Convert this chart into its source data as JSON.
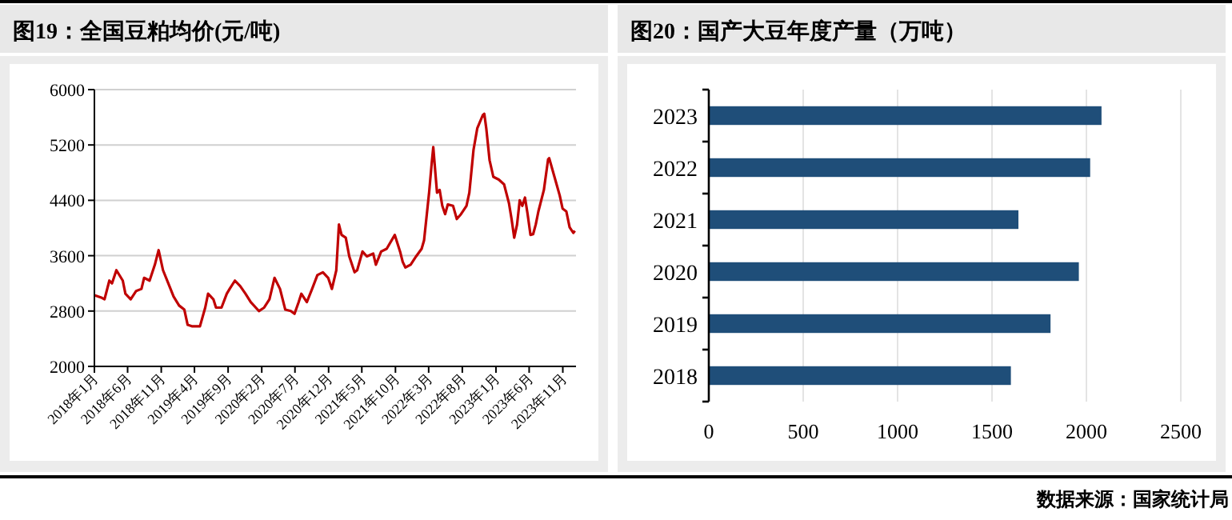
{
  "chart_data": [
    {
      "type": "line",
      "title": "图19：全国豆粕均价(元/吨)",
      "x": [
        "2018-01-01",
        "2018-02-04",
        "2018-02-16",
        "2018-03-10",
        "2018-03-22",
        "2018-04-11",
        "2018-05-10",
        "2018-05-22",
        "2018-06-15",
        "2018-07-10",
        "2018-08-03",
        "2018-08-15",
        "2018-09-09",
        "2018-10-03",
        "2018-10-20",
        "2018-11-09",
        "2018-12-03",
        "2018-12-27",
        "2019-01-21",
        "2019-02-14",
        "2019-03-01",
        "2019-03-20",
        "2019-04-26",
        "2019-05-20",
        "2019-06-02",
        "2019-06-26",
        "2019-07-08",
        "2019-08-02",
        "2019-08-26",
        "2019-09-08",
        "2019-10-02",
        "2019-10-26",
        "2019-11-19",
        "2019-12-13",
        "2020-01-19",
        "2020-02-12",
        "2020-03-07",
        "2020-03-30",
        "2020-04-24",
        "2020-05-18",
        "2020-06-12",
        "2020-06-29",
        "2020-07-18",
        "2020-07-30",
        "2020-08-24",
        "2020-09-17",
        "2020-10-11",
        "2020-11-05",
        "2020-11-29",
        "2020-12-16",
        "2021-01-05",
        "2021-01-17",
        "2021-01-29",
        "2021-02-17",
        "2021-03-05",
        "2021-03-29",
        "2021-04-10",
        "2021-05-04",
        "2021-05-24",
        "2021-06-22",
        "2021-07-04",
        "2021-07-28",
        "2021-08-22",
        "2021-09-28",
        "2021-10-22",
        "2021-11-03",
        "2021-11-15",
        "2021-12-09",
        "2022-01-03",
        "2022-01-28",
        "2022-02-08",
        "2022-03-03",
        "2022-03-15",
        "2022-03-22",
        "2022-04-01",
        "2022-04-08",
        "2022-04-20",
        "2022-05-02",
        "2022-05-15",
        "2022-05-27",
        "2022-06-20",
        "2022-07-07",
        "2022-07-26",
        "2022-08-20",
        "2022-09-02",
        "2022-09-21",
        "2022-10-08",
        "2022-11-02",
        "2022-11-09",
        "2022-11-18",
        "2022-12-03",
        "2022-12-20",
        "2023-01-14",
        "2023-02-07",
        "2023-03-01",
        "2023-03-13",
        "2023-03-25",
        "2023-04-07",
        "2023-04-19",
        "2023-05-01",
        "2023-05-13",
        "2023-05-25",
        "2023-06-07",
        "2023-06-19",
        "2023-07-01",
        "2023-07-13",
        "2023-08-07",
        "2023-08-26",
        "2023-08-31",
        "2023-09-24",
        "2023-10-18",
        "2023-10-31",
        "2023-11-17",
        "2023-12-02",
        "2023-12-19",
        "2023-12-26"
      ],
      "series": [
        {
          "color": "#c00000",
          "values": [
            3030,
            2990,
            2970,
            3240,
            3200,
            3390,
            3240,
            3050,
            2970,
            3090,
            3120,
            3280,
            3240,
            3470,
            3680,
            3390,
            3200,
            3010,
            2880,
            2820,
            2600,
            2580,
            2580,
            2850,
            3050,
            2970,
            2850,
            2850,
            3050,
            3120,
            3240,
            3160,
            3050,
            2930,
            2800,
            2850,
            2970,
            3280,
            3120,
            2820,
            2800,
            2760,
            2930,
            3050,
            2930,
            3120,
            3320,
            3360,
            3280,
            3120,
            3390,
            4050,
            3900,
            3860,
            3590,
            3360,
            3390,
            3660,
            3590,
            3630,
            3470,
            3660,
            3700,
            3900,
            3660,
            3510,
            3430,
            3470,
            3590,
            3700,
            3820,
            4510,
            4940,
            5170,
            4780,
            4510,
            4550,
            4320,
            4200,
            4340,
            4320,
            4130,
            4200,
            4320,
            4510,
            5130,
            5440,
            5630,
            5650,
            5440,
            4980,
            4740,
            4700,
            4630,
            4360,
            4130,
            3860,
            4050,
            4400,
            4320,
            4440,
            4200,
            3900,
            3910,
            4050,
            4240,
            4550,
            4990,
            5010,
            4740,
            4470,
            4280,
            4240,
            4010,
            3930,
            3960
          ]
        }
      ],
      "xlim": [
        "2018-01-01",
        "2023-12-31"
      ],
      "xticks": [
        {
          "value": "2018-01",
          "label": "2018年1月"
        },
        {
          "value": "2018-06",
          "label": "2018年6月"
        },
        {
          "value": "2018-11",
          "label": "2018年11月"
        },
        {
          "value": "2019-04",
          "label": "2019年4月"
        },
        {
          "value": "2019-09",
          "label": "2019年9月"
        },
        {
          "value": "2020-02",
          "label": "2020年2月"
        },
        {
          "value": "2020-07",
          "label": "2020年7月"
        },
        {
          "value": "2020-12",
          "label": "2020年12月"
        },
        {
          "value": "2021-05",
          "label": "2021年5月"
        },
        {
          "value": "2021-10",
          "label": "2021年10月"
        },
        {
          "value": "2022-03",
          "label": "2022年3月"
        },
        {
          "value": "2022-08",
          "label": "2022年8月"
        },
        {
          "value": "2023-01",
          "label": "2023年1月"
        },
        {
          "value": "2023-06",
          "label": "2023年6月"
        },
        {
          "value": "2023-11",
          "label": "2023年11月"
        }
      ],
      "ylim": [
        2000,
        6000
      ],
      "yticks": [
        2000,
        2800,
        3600,
        4400,
        5200,
        6000
      ],
      "grid": "y"
    },
    {
      "type": "bar",
      "title": "图20：国产大豆年度产量（万吨）",
      "orientation": "horizontal",
      "categories": [
        "2023",
        "2022",
        "2021",
        "2020",
        "2019",
        "2018"
      ],
      "values": [
        2080,
        2020,
        1640,
        1960,
        1810,
        1600
      ],
      "color": "#1f4e79",
      "xlim": [
        0,
        2500
      ],
      "xticks": [
        0,
        500,
        1000,
        1500,
        2000,
        2500
      ],
      "grid": "x",
      "annotations": [
        "数据来源：国家统计局"
      ]
    }
  ]
}
